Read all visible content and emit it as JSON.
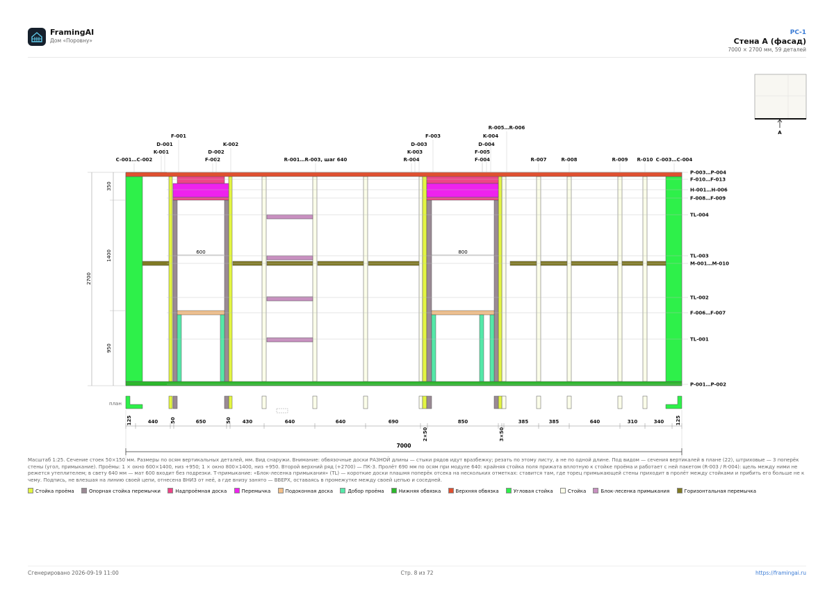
{
  "header": {
    "brand": "FramingAI",
    "brand_sub": "Дом «Поровну»",
    "sheet_code": "РС-1",
    "sheet_title": "Стена А (фасад)",
    "sheet_sub": "7000 × 2700 мм, 59 деталей"
  },
  "key_plan": {
    "label": "A"
  },
  "plan_label": "план",
  "overall_width": "7000",
  "height_dims": {
    "total": "2700",
    "top": "350",
    "middle": "1400",
    "bottom": "950"
  },
  "opening_widths": [
    "600",
    "800"
  ],
  "top_callouts": [
    "C-001…C-002",
    "K-001",
    "D-001",
    "F-001",
    "F-002",
    "D-002",
    "K-002",
    "R-001…R-003, шаг 640",
    "R-004",
    "K-003",
    "D-003",
    "F-003",
    "K-004",
    "R-005…R-006",
    "D-004",
    "F-005",
    "F-004",
    "R-007",
    "R-008",
    "R-009",
    "R-010",
    "C-003…C-004"
  ],
  "right_callouts": [
    "P-003…P-004",
    "F-010…F-013",
    "H-001…H-006",
    "F-008…F-009",
    "TL-004",
    "TL-003",
    "M-001…M-010",
    "TL-002",
    "F-006…F-007",
    "TL-001",
    "P-001…P-002"
  ],
  "plan_dims": [
    "125",
    "440",
    "50",
    "650",
    "50",
    "430",
    "640",
    "640",
    "690",
    "850",
    "385",
    "385",
    "640",
    "310",
    "340",
    "125"
  ],
  "plan_dims_stacked": [
    "2×50",
    "3×50"
  ],
  "note": "Масштаб 1:25. Сечение стоек 50×150 мм. Размеры по осям вертикальных деталей, мм. Вид снаружи. Внимание: обвязочные доски РАЗНОЙ длины — стыки рядов идут вразбежку; резать по этому листу, а не по одной длине. Под видом — сечения вертикалей в плане (22), штриховые — 3 поперёк стены (угол, примыкание). Проёмы: 1 × окно 600×1400, низ +950; 1 × окно 800×1400, низ +950. Второй верхний ряд (+2700) — ПК-3. Пролёт 690 мм по осям при модуле 640: крайняя стойка поля прижата вплотную к стойке проёма и работает с ней пакетом (R-003 / R-004): щель между ними не режется утеплителем; в свету 640 мм — мат 600 входит без подрезки. Т-примыкание: «Блок-лесенка примыкания» (TL) — короткие доски плашмя поперёк отсека на нескольких отметках: ставится там, где торец примыкающей стены приходит в пролёт между стойками и прибить его больше не к чему. Подпись, не влезшая на линию своей цепи, отнесена ВНИЗ от неё, а где внизу занято — ВВЕРХ, оставаясь в промежутке между своей цепью и соседней.",
  "legend": [
    {
      "label": "Стойка проёма",
      "color": "#e3f542"
    },
    {
      "label": "Опорная стойка перемычки",
      "color": "#9a8a94"
    },
    {
      "label": "Надпроёмная доска",
      "color": "#ee4488"
    },
    {
      "label": "Перемычка",
      "color": "#ee22ee"
    },
    {
      "label": "Подоконная доска",
      "color": "#f3c08a"
    },
    {
      "label": "Добор проёма",
      "color": "#55e8a8"
    },
    {
      "label": "Нижняя обвязка",
      "color": "#2cb82c"
    },
    {
      "label": "Верхняя обвязка",
      "color": "#e05030"
    },
    {
      "label": "Угловая стойка",
      "color": "#2ef04a"
    },
    {
      "label": "Стойка",
      "color": "#fbfde9"
    },
    {
      "label": "Блок-лесенка примыкания",
      "color": "#c890c0"
    },
    {
      "label": "Горизонтальная перемычка",
      "color": "#807a24"
    }
  ],
  "footer": {
    "generated": "Сгенерировано 2026-09-19 11:00",
    "page": "Стр. 8 из 72",
    "url": "https://framingai.ru"
  }
}
